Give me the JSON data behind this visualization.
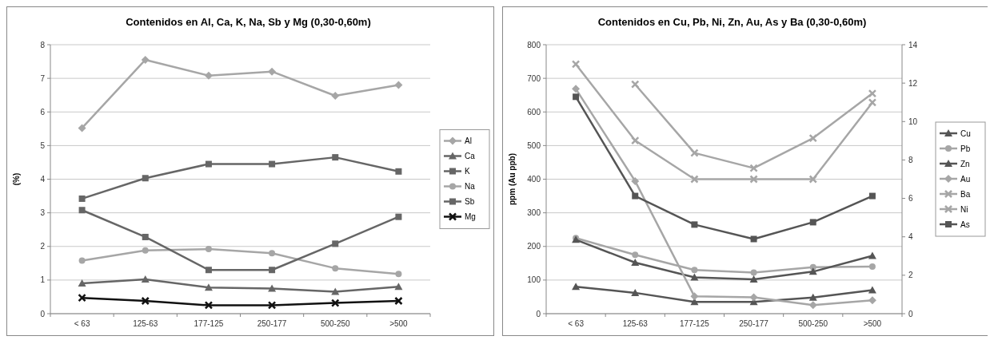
{
  "chart_data": [
    {
      "type": "line",
      "title": "Contenidos en Al, Ca, K, Na, Sb y Mg (0,30-0,60m)",
      "ylabel": "(%)",
      "categories": [
        "< 63",
        "125-63",
        "177-125",
        "250-177",
        "500-250",
        ">500"
      ],
      "ylim": [
        0,
        8
      ],
      "yticks": [
        0,
        1,
        2,
        3,
        4,
        5,
        6,
        7,
        8
      ],
      "grid": "y",
      "legend": "right",
      "series": [
        {
          "name": "Al",
          "color": "#a6a6a6",
          "marker": "diamond",
          "values": [
            5.52,
            7.55,
            7.08,
            7.2,
            6.48,
            6.8
          ]
        },
        {
          "name": "Ca",
          "color": "#666666",
          "marker": "triangle",
          "values": [
            0.9,
            1.02,
            0.78,
            0.75,
            0.65,
            0.8
          ]
        },
        {
          "name": "K",
          "color": "#666666",
          "marker": "square",
          "values": [
            3.42,
            4.03,
            4.45,
            4.45,
            4.65,
            4.23
          ]
        },
        {
          "name": "Na",
          "color": "#a6a6a6",
          "marker": "circle",
          "values": [
            1.58,
            1.88,
            1.92,
            1.8,
            1.35,
            1.18
          ]
        },
        {
          "name": "Sb",
          "color": "#666666",
          "marker": "square",
          "values": [
            3.08,
            2.28,
            1.3,
            1.3,
            2.08,
            2.88
          ]
        },
        {
          "name": "Mg",
          "color": "#111111",
          "marker": "cross",
          "values": [
            0.47,
            0.38,
            0.25,
            0.25,
            0.32,
            0.38
          ]
        }
      ]
    },
    {
      "type": "line",
      "title": "Contenidos en Cu, Pb, Ni, Zn, Au, As y Ba (0,30-0,60m)",
      "ylabel": "ppm (Au ppb)",
      "categories": [
        "< 63",
        "125-63",
        "177-125",
        "250-177",
        "500-250",
        ">500"
      ],
      "ylim": [
        0,
        800
      ],
      "yticks": [
        0,
        100,
        200,
        300,
        400,
        500,
        600,
        700,
        800
      ],
      "y2lim": [
        0,
        14
      ],
      "y2ticks": [
        0,
        2,
        4,
        6,
        8,
        10,
        12,
        14
      ],
      "grid": "y",
      "legend": "right",
      "series": [
        {
          "name": "Cu",
          "color": "#555555",
          "marker": "triangle",
          "values": [
            80,
            62,
            35,
            35,
            48,
            70
          ]
        },
        {
          "name": "Pb",
          "color": "#a6a6a6",
          "marker": "circle",
          "values": [
            225,
            175,
            130,
            122,
            138,
            140
          ]
        },
        {
          "name": "Zn",
          "color": "#555555",
          "marker": "triangle",
          "values": [
            220,
            152,
            108,
            102,
            125,
            172
          ]
        },
        {
          "name": "Au",
          "color": "#a6a6a6",
          "marker": "diamond",
          "axis": "y2",
          "values": [
            11.7,
            6.9,
            0.9,
            0.85,
            0.45,
            0.7
          ]
        },
        {
          "name": "Ba",
          "color": "#a6a6a6",
          "marker": "cross",
          "values": [
            null,
            682,
            478,
            433,
            522,
            655
          ]
        },
        {
          "name": "Ni",
          "color": "#a6a6a6",
          "marker": "cross",
          "values": [
            742,
            515,
            400,
            400,
            400,
            628
          ]
        },
        {
          "name": "As",
          "color": "#555555",
          "marker": "square",
          "values": [
            645,
            350,
            265,
            222,
            272,
            350
          ]
        }
      ]
    }
  ]
}
